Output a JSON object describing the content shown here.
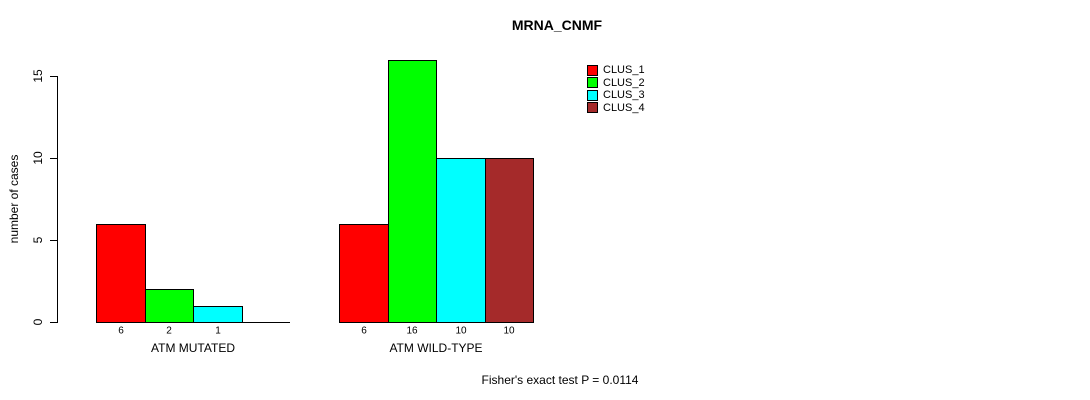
{
  "title": "MRNA_CNMF",
  "footer": {
    "caption": "Fisher's exact test P = 0.0114"
  },
  "chart_data": {
    "type": "bar",
    "title": "MRNA_CNMF",
    "xlabel": "",
    "ylabel": "number of cases",
    "ylim": [
      0,
      16.5
    ],
    "yticks": [
      0,
      5,
      10,
      15
    ],
    "grid": false,
    "legend_position": "top-right",
    "categories": [
      "ATM MUTATED",
      "ATM WILD-TYPE"
    ],
    "series": [
      {
        "name": "CLUS_1",
        "color": "#FF0000",
        "values": [
          6,
          6
        ]
      },
      {
        "name": "CLUS_2",
        "color": "#00FF00",
        "values": [
          2,
          16
        ]
      },
      {
        "name": "CLUS_3",
        "color": "#00FFFF",
        "values": [
          1,
          10
        ]
      },
      {
        "name": "CLUS_4",
        "color": "#A52A2A",
        "values": [
          0,
          10
        ]
      }
    ],
    "bar_value_labels": [
      [
        "6",
        "2",
        "1",
        ""
      ],
      [
        "6",
        "16",
        "10",
        "10"
      ]
    ],
    "annotation": "Fisher's exact test P = 0.0114"
  }
}
